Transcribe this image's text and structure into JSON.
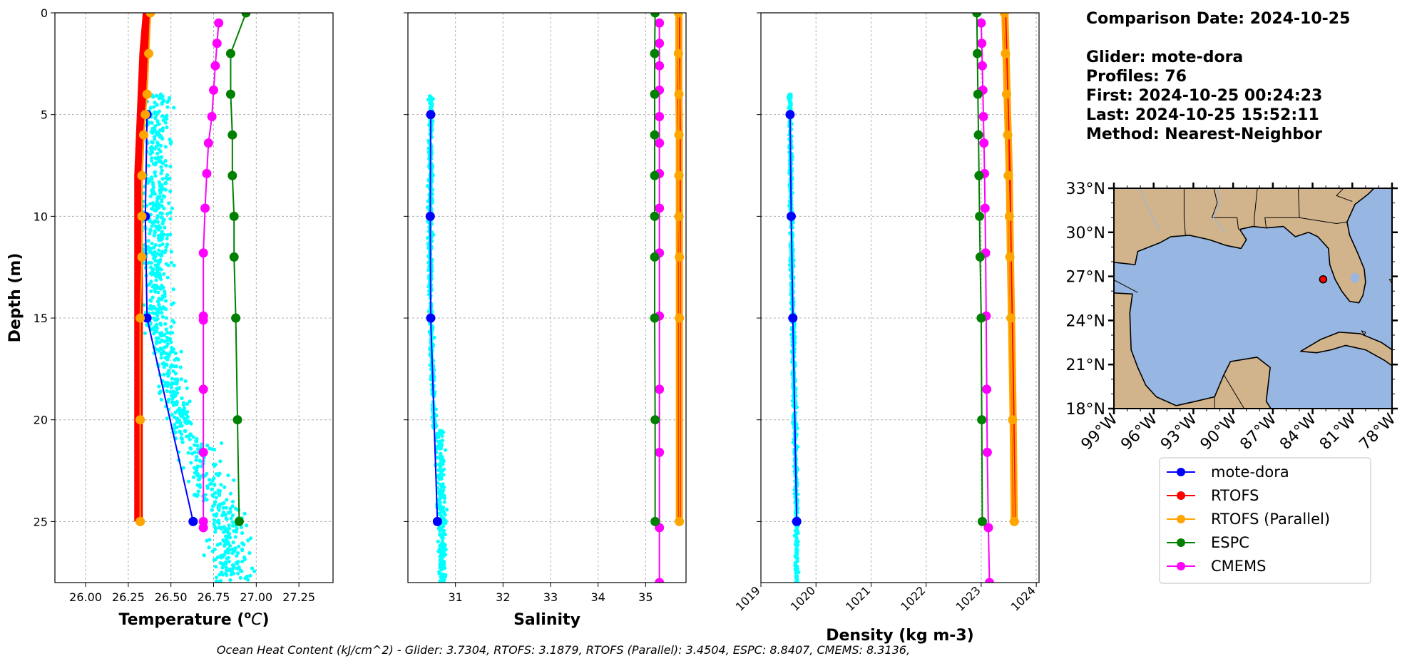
{
  "info": {
    "date_line": "Comparison Date: 2024-10-25",
    "glider_line": "Glider: mote-dora",
    "profiles_line": "Profiles: 76",
    "first_line": "First: 2024-10-25 00:24:23",
    "last_line": "Last: 2024-10-25 15:52:11",
    "method_line": "Method: Nearest-Neighbor"
  },
  "footer": {
    "ohc": "Ocean Heat Content (kJ/cm^2) - Glider: 3.7304,  RTOFS: 3.1879,  RTOFS (Parallel): 3.4504,  ESPC: 8.8407,  CMEMS: 8.3136,"
  },
  "colors": {
    "glider": "#0000ff",
    "rtofs": "#ff0000",
    "rtofs_parallel": "#ffa500",
    "espc": "#008000",
    "cmems": "#ff00ff",
    "scatter": "#00ffff",
    "land": "#d2b48c",
    "ocean": "#97b6e1"
  },
  "legend": [
    "mote-dora",
    "RTOFS",
    "RTOFS (Parallel)",
    "ESPC",
    "CMEMS"
  ],
  "chart_data": [
    {
      "type": "line",
      "ylabel": "Depth (m)",
      "xlabel": "Temperature (°C)",
      "xlim": [
        25.82,
        27.45
      ],
      "ylim": [
        28,
        0
      ],
      "xticks": [
        "26.00",
        "26.25",
        "26.50",
        "26.75",
        "27.00",
        "27.25"
      ],
      "yticks": [
        "0",
        "5",
        "10",
        "15",
        "20",
        "25"
      ],
      "grid": true,
      "series": [
        {
          "name": "mote-dora",
          "x": [
            26.36,
            26.35,
            26.36,
            26.63
          ],
          "y": [
            5,
            10,
            15,
            25
          ]
        },
        {
          "name": "RTOFS",
          "x": [
            26.36,
            26.34,
            26.33,
            26.32,
            26.31,
            26.31,
            26.31,
            26.31,
            26.31
          ],
          "y": [
            0,
            2,
            4,
            6,
            8,
            10,
            12,
            15,
            25
          ]
        },
        {
          "name": "RTOFS (Parallel)",
          "x": [
            26.38,
            26.37,
            26.36,
            26.35,
            26.34,
            26.33,
            26.33,
            26.33,
            26.32,
            26.32,
            26.32,
            26.32
          ],
          "y": [
            0,
            2,
            4,
            5,
            6,
            8,
            10,
            12,
            15,
            20,
            25,
            25
          ]
        },
        {
          "name": "ESPC",
          "x": [
            26.94,
            26.85,
            26.85,
            26.86,
            26.86,
            26.87,
            26.87,
            26.88,
            26.89,
            26.9
          ],
          "y": [
            0,
            2,
            4,
            6,
            8,
            10,
            12,
            15,
            20,
            25
          ]
        },
        {
          "name": "CMEMS",
          "x": [
            26.78,
            26.77,
            26.76,
            26.75,
            26.74,
            26.72,
            26.71,
            26.7,
            26.69,
            26.69,
            26.69,
            26.69,
            26.69,
            26.69,
            26.69
          ],
          "y": [
            0.5,
            1.5,
            2.6,
            3.8,
            5.1,
            6.4,
            7.9,
            9.6,
            11.8,
            14.9,
            15.1,
            18.5,
            21.6,
            25,
            25.3
          ]
        }
      ]
    },
    {
      "type": "line",
      "xlabel": "Salinity",
      "xlim": [
        30.0,
        35.85
      ],
      "ylim": [
        28,
        0
      ],
      "xticks": [
        "31",
        "32",
        "33",
        "34",
        "35"
      ],
      "grid": true,
      "series": [
        {
          "name": "mote-dora",
          "x": [
            30.48,
            30.47,
            30.48,
            30.62
          ],
          "y": [
            5,
            10,
            15,
            25
          ]
        },
        {
          "name": "RTOFS",
          "x": [
            35.7,
            35.7,
            35.7,
            35.71,
            35.71,
            35.71,
            35.71,
            35.71,
            35.71
          ],
          "y": [
            0,
            2,
            4,
            6,
            8,
            10,
            12,
            15,
            25
          ]
        },
        {
          "name": "RTOFS (Parallel)",
          "x": [
            35.69,
            35.69,
            35.7,
            35.7,
            35.7,
            35.7,
            35.71,
            35.71,
            35.71
          ],
          "y": [
            0,
            2,
            4,
            6,
            8,
            10,
            12,
            15,
            25
          ]
        },
        {
          "name": "ESPC",
          "x": [
            35.2,
            35.19,
            35.19,
            35.19,
            35.19,
            35.19,
            35.19,
            35.19,
            35.2,
            35.2
          ],
          "y": [
            0,
            2,
            4,
            6,
            8,
            10,
            12,
            15,
            20,
            25
          ]
        },
        {
          "name": "CMEMS",
          "x": [
            35.29,
            35.29,
            35.29,
            35.29,
            35.29,
            35.29,
            35.29,
            35.29,
            35.29,
            35.29,
            35.29,
            35.29,
            35.29,
            35.29
          ],
          "y": [
            0.5,
            1.5,
            2.6,
            3.8,
            5.1,
            6.4,
            7.9,
            9.6,
            11.8,
            14.9,
            18.5,
            21.6,
            25.3,
            28
          ]
        }
      ]
    },
    {
      "type": "line",
      "xlabel": "Density (kg m-3)",
      "xlim": [
        1019.0,
        1024.05
      ],
      "ylim": [
        28,
        0
      ],
      "xticks": [
        "1019",
        "1020",
        "1021",
        "1022",
        "1023",
        "1024"
      ],
      "grid": true,
      "series": [
        {
          "name": "mote-dora",
          "x": [
            1019.53,
            1019.55,
            1019.58,
            1019.65
          ],
          "y": [
            5,
            10,
            15,
            25
          ]
        },
        {
          "name": "RTOFS",
          "x": [
            1023.43,
            1023.45,
            1023.47,
            1023.49,
            1023.51,
            1023.52,
            1023.53,
            1023.55,
            1023.58,
            1023.6
          ],
          "y": [
            0,
            2,
            4,
            6,
            8,
            10,
            12,
            15,
            20,
            25
          ]
        },
        {
          "name": "RTOFS (Parallel)",
          "x": [
            1023.42,
            1023.44,
            1023.46,
            1023.48,
            1023.49,
            1023.51,
            1023.52,
            1023.54,
            1023.57,
            1023.6
          ],
          "y": [
            0,
            2,
            4,
            6,
            8,
            10,
            12,
            15,
            20,
            25
          ]
        },
        {
          "name": "ESPC",
          "x": [
            1022.92,
            1022.93,
            1022.94,
            1022.95,
            1022.96,
            1022.97,
            1022.98,
            1023.0,
            1023.01,
            1023.02
          ],
          "y": [
            0,
            2,
            4,
            6,
            8,
            10,
            12,
            15,
            20,
            25
          ]
        },
        {
          "name": "CMEMS",
          "x": [
            1023.0,
            1023.01,
            1023.02,
            1023.03,
            1023.04,
            1023.05,
            1023.06,
            1023.07,
            1023.08,
            1023.09,
            1023.1,
            1023.11,
            1023.13,
            1023.15
          ],
          "y": [
            0.5,
            1.5,
            2.6,
            3.8,
            5.1,
            6.4,
            7.9,
            9.6,
            11.8,
            14.9,
            18.5,
            21.6,
            25.3,
            28
          ]
        }
      ]
    },
    {
      "type": "map",
      "xticks": [
        "99°W",
        "96°W",
        "93°W",
        "90°W",
        "87°W",
        "84°W",
        "81°W",
        "78°W"
      ],
      "yticks": [
        "33°N",
        "30°N",
        "27°N",
        "24°N",
        "21°N",
        "18°N"
      ],
      "lon_range": [
        -99,
        -78
      ],
      "lat_range": [
        18,
        33
      ],
      "glider_position": {
        "lon": -83.2,
        "lat": 26.8
      }
    }
  ]
}
